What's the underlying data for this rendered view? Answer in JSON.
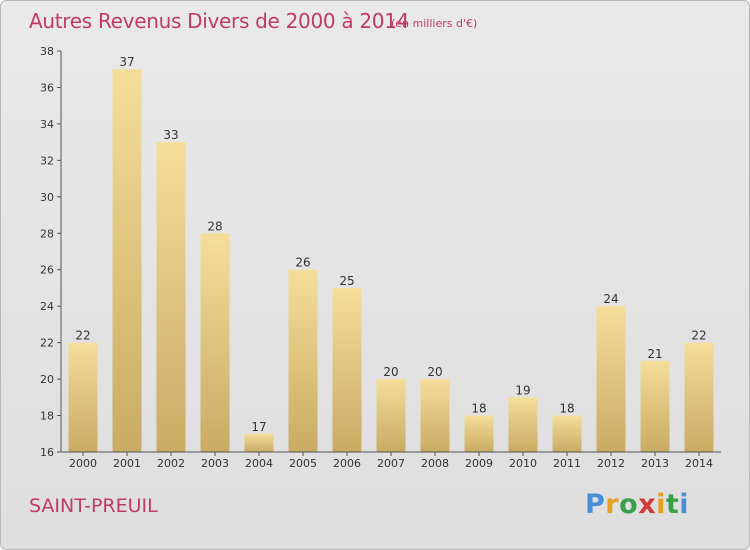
{
  "header": {
    "title": "Autres Revenus Divers de 2000 à 2014",
    "subtitle": "(en milliers d'€)"
  },
  "footer": {
    "commune": "SAINT-PREUIL",
    "logo_text": "Proxiti"
  },
  "chart_data": {
    "type": "bar",
    "title": "Autres Revenus Divers de 2000 à 2014",
    "subtitle": "(en milliers d'€)",
    "xlabel": "",
    "ylabel": "",
    "categories": [
      "2000",
      "2001",
      "2002",
      "2003",
      "2004",
      "2005",
      "2006",
      "2007",
      "2008",
      "2009",
      "2010",
      "2011",
      "2012",
      "2013",
      "2014"
    ],
    "values": [
      22,
      37,
      33,
      28,
      17,
      26,
      25,
      20,
      20,
      18,
      19,
      18,
      24,
      21,
      22
    ],
    "ylim": [
      16,
      38
    ],
    "yticks": [
      16,
      18,
      20,
      22,
      24,
      26,
      28,
      30,
      32,
      34,
      36,
      38
    ],
    "grid": false,
    "legend": "none",
    "colors": {
      "bar_light": "#f5dd9a",
      "bar_dark": "#c9ab63",
      "axis": "#555555",
      "title": "#c03a68"
    }
  }
}
